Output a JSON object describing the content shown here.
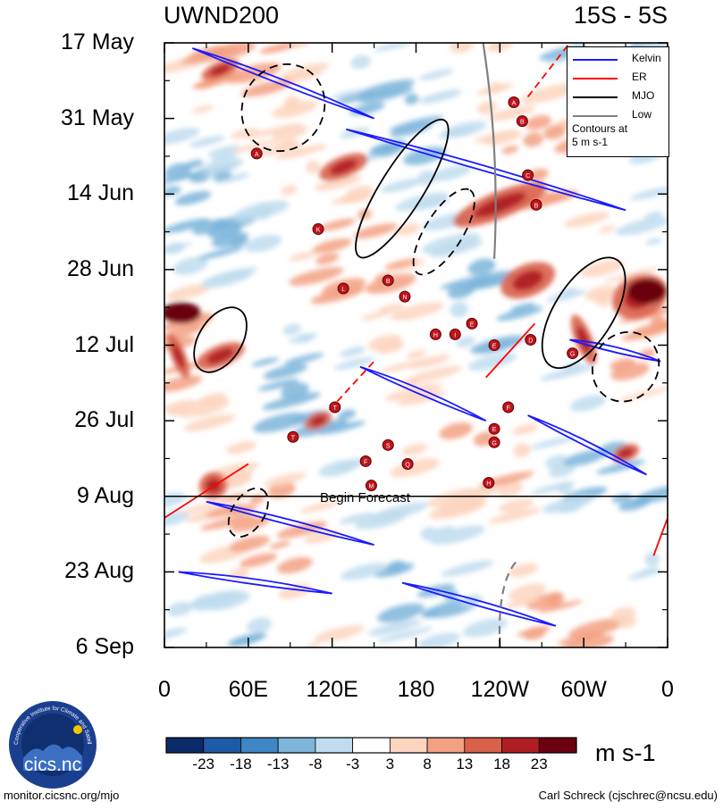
{
  "chart_data": {
    "type": "heatmap",
    "title_left": "UWND200",
    "title_right": "15S - 5S",
    "x_axis": {
      "ticks": [
        "0",
        "60E",
        "120E",
        "180",
        "120W",
        "60W",
        "0"
      ],
      "range": [
        0,
        360
      ]
    },
    "y_axis": {
      "ticks": [
        "17 May",
        "31 May",
        "14 Jun",
        "28 Jun",
        "12 Jul",
        "26 Jul",
        "9 Aug",
        "23 Aug",
        "6 Sep"
      ],
      "range_days": [
        0,
        112
      ]
    },
    "forecast_line": {
      "label": "Begin Forecast",
      "day": 84
    },
    "colorbar": {
      "labels": [
        "-23",
        "-18",
        "-13",
        "-8",
        "-3",
        "3",
        "8",
        "13",
        "18",
        "23"
      ],
      "colors": [
        "#0a2a68",
        "#1f5aa6",
        "#3f86c4",
        "#7db5db",
        "#bfdcee",
        "#ffffff",
        "#fdd5c0",
        "#f3a183",
        "#d9604a",
        "#b01e24",
        "#6a0010"
      ],
      "units": "m s-1"
    },
    "legend": {
      "entries": [
        {
          "name": "Kelvin",
          "color": "#1a1aff"
        },
        {
          "name": "ER",
          "color": "#ff0000"
        },
        {
          "name": "MJO",
          "color": "#000000"
        },
        {
          "name": "Low",
          "color": "#808080"
        }
      ],
      "note_line1": "Contours at",
      "note_line2": "5 m s-1"
    },
    "storms": [
      {
        "id": "A",
        "lon": 66,
        "day": 20.5
      },
      {
        "id": "K",
        "lon": 110,
        "day": 34.5
      },
      {
        "id": "L",
        "lon": 128,
        "day": 45.5
      },
      {
        "id": "B",
        "lon": 160,
        "day": 44
      },
      {
        "id": "N",
        "lon": 172,
        "day": 47
      },
      {
        "id": "H",
        "lon": 194,
        "day": 54
      },
      {
        "id": "I",
        "lon": 208,
        "day": 54
      },
      {
        "id": "E",
        "lon": 220,
        "day": 52
      },
      {
        "id": "E",
        "lon": 236,
        "day": 56
      },
      {
        "id": "D",
        "lon": 262,
        "day": 55
      },
      {
        "id": "G",
        "lon": 292,
        "day": 57.5
      },
      {
        "id": "A",
        "lon": 250,
        "day": 11
      },
      {
        "id": "B",
        "lon": 256,
        "day": 14.5
      },
      {
        "id": "C",
        "lon": 260,
        "day": 24.5
      },
      {
        "id": "B",
        "lon": 266,
        "day": 30
      },
      {
        "id": "T",
        "lon": 122,
        "day": 67.5
      },
      {
        "id": "F",
        "lon": 246,
        "day": 67.5
      },
      {
        "id": "E",
        "lon": 236,
        "day": 71.5
      },
      {
        "id": "G",
        "lon": 236,
        "day": 74
      },
      {
        "id": "T",
        "lon": 92,
        "day": 73
      },
      {
        "id": "S",
        "lon": 160,
        "day": 74.5
      },
      {
        "id": "F",
        "lon": 144,
        "day": 77.5
      },
      {
        "id": "Q",
        "lon": 174,
        "day": 78
      },
      {
        "id": "M",
        "lon": 148,
        "day": 82
      },
      {
        "id": "H",
        "lon": 232,
        "day": 81.5
      }
    ]
  },
  "footer": {
    "left": "monitor.cicsnc.org/mjo",
    "right": "Carl Schreck (cjschrec@ncsu.edu)"
  },
  "logo": {
    "ring_text": "Cooperative Institute for Climate and Satellites",
    "wordmark": "cics.nc"
  }
}
